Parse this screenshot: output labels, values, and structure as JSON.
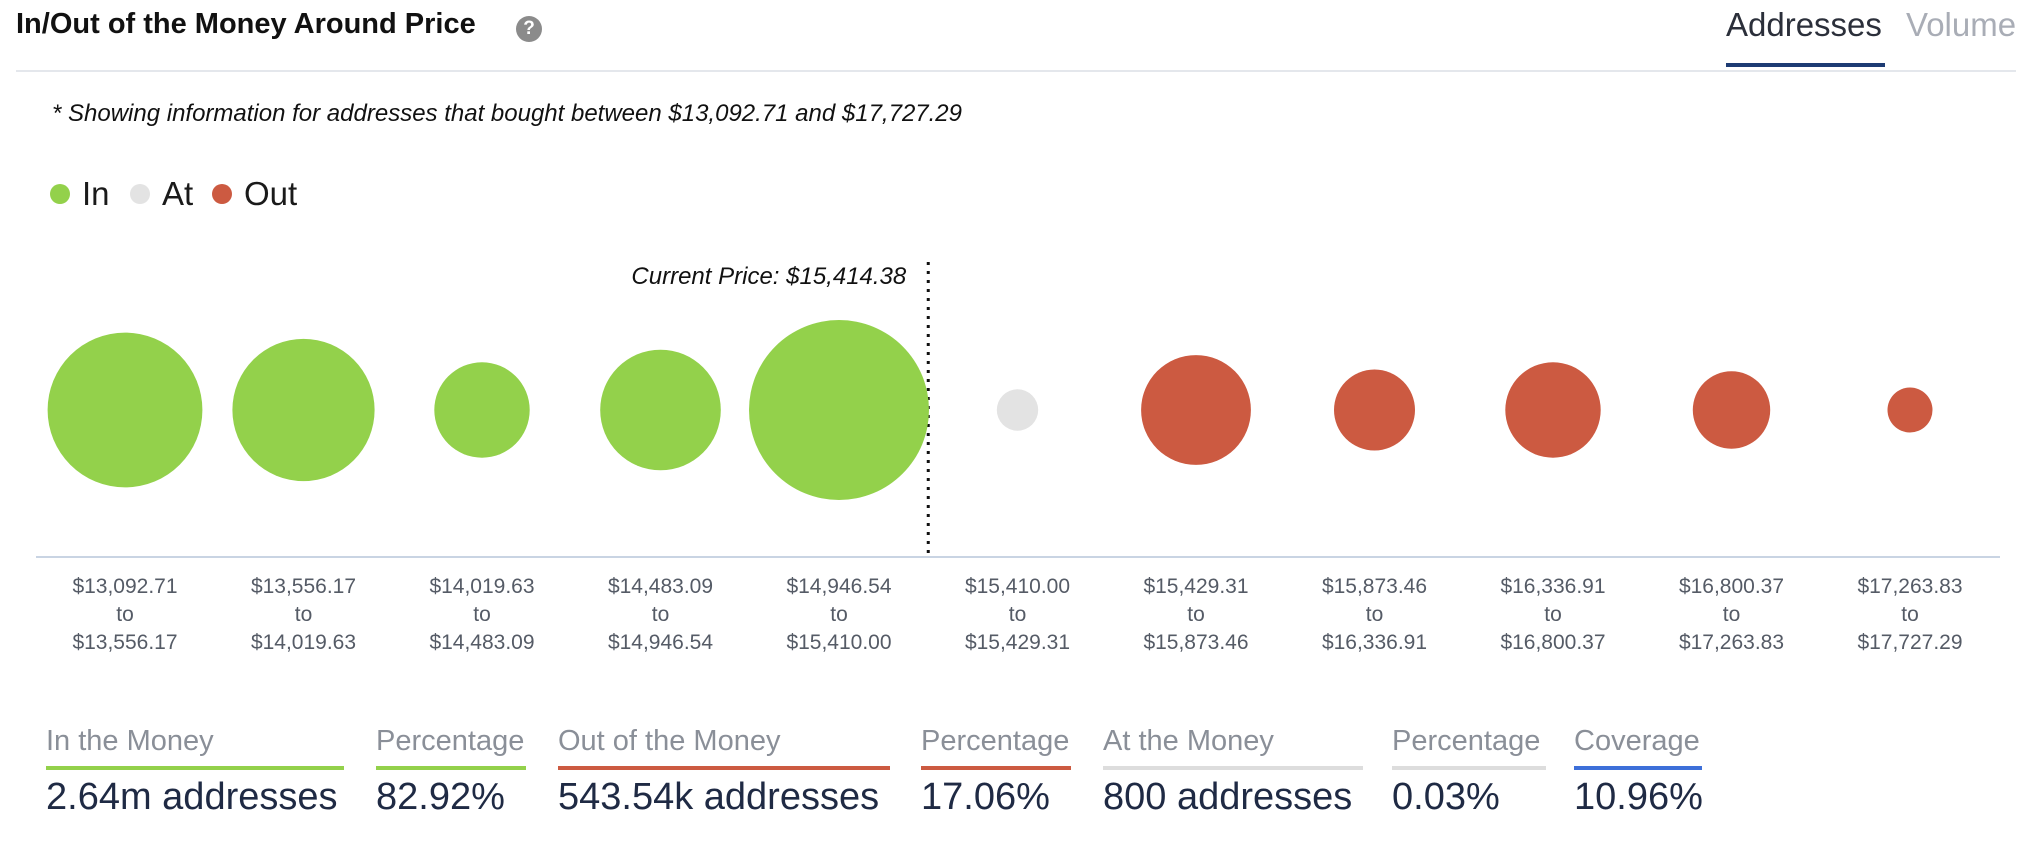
{
  "header": {
    "title": "In/Out of the Money Around Price",
    "tabs": [
      {
        "label": "Addresses",
        "active": true
      },
      {
        "label": "Volume",
        "active": false
      }
    ]
  },
  "note": "* Showing information for addresses that bought between $13,092.71 and $17,727.29",
  "legend": [
    {
      "label": "In",
      "color": "#93d14b"
    },
    {
      "label": "At",
      "color": "#e3e3e3"
    },
    {
      "label": "Out",
      "color": "#cc5a41"
    }
  ],
  "chart_data": {
    "type": "bubble",
    "current_price_label": "Current Price: $15,414.38",
    "categories": [
      {
        "from": "$13,092.71",
        "to": "$13,556.17",
        "status": "In",
        "relative_size": 0.86
      },
      {
        "from": "$13,556.17",
        "to": "$14,019.63",
        "status": "In",
        "relative_size": 0.79
      },
      {
        "from": "$14,019.63",
        "to": "$14,483.09",
        "status": "In",
        "relative_size": 0.53
      },
      {
        "from": "$14,483.09",
        "to": "$14,946.54",
        "status": "In",
        "relative_size": 0.67
      },
      {
        "from": "$14,946.54",
        "to": "$15,410.00",
        "status": "In",
        "relative_size": 1.0
      },
      {
        "from": "$15,410.00",
        "to": "$15,429.31",
        "status": "At",
        "relative_size": 0.23
      },
      {
        "from": "$15,429.31",
        "to": "$15,873.46",
        "status": "Out",
        "relative_size": 0.61
      },
      {
        "from": "$15,873.46",
        "to": "$16,336.91",
        "status": "Out",
        "relative_size": 0.45
      },
      {
        "from": "$16,336.91",
        "to": "$16,800.37",
        "status": "Out",
        "relative_size": 0.53
      },
      {
        "from": "$16,800.37",
        "to": "$17,263.83",
        "status": "Out",
        "relative_size": 0.43
      },
      {
        "from": "$17,263.83",
        "to": "$17,727.29",
        "status": "Out",
        "relative_size": 0.25
      }
    ],
    "to_word": "to",
    "current_price_after_index": 4
  },
  "stats": [
    {
      "label": "In the Money",
      "value": "2.64m addresses",
      "color": "#93d14b"
    },
    {
      "label": "Percentage",
      "value": "82.92%",
      "color": "#93d14b"
    },
    {
      "label": "Out of the Money",
      "value": "543.54k addresses",
      "color": "#cc5a41"
    },
    {
      "label": "Percentage",
      "value": "17.06%",
      "color": "#cc5a41"
    },
    {
      "label": "At the Money",
      "value": "800 addresses",
      "color": "#dddddd"
    },
    {
      "label": "Percentage",
      "value": "0.03%",
      "color": "#dddddd"
    },
    {
      "label": "Coverage",
      "value": "10.96%",
      "color": "#3d6fd9"
    }
  ]
}
